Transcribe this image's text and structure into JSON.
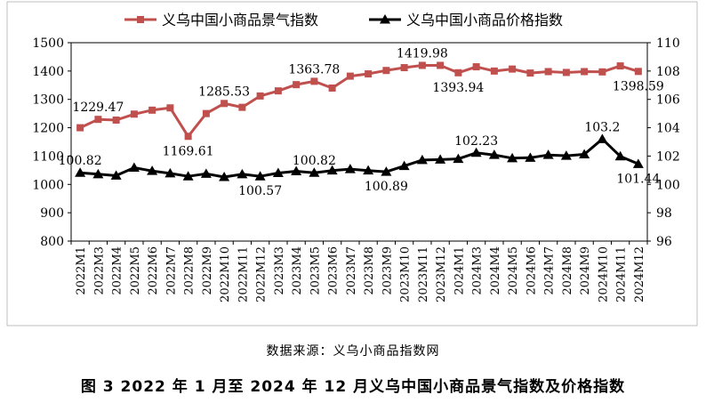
{
  "chart_data": {
    "type": "line",
    "categories": [
      "2022M1",
      "2022M3",
      "2022M4",
      "2022M5",
      "2022M6",
      "2022M7",
      "2022M8",
      "2022M9",
      "2022M10",
      "2022M11",
      "2022M12",
      "2023M3",
      "2023M4",
      "2023M5",
      "2023M6",
      "2023M7",
      "2023M8",
      "2023M9",
      "2023M10",
      "2023M11",
      "2023M12",
      "2024M1",
      "2024M3",
      "2024M4",
      "2024M5",
      "2024M6",
      "2024M7",
      "2024M8",
      "2024M9",
      "2024M10",
      "2024M11",
      "2024M12"
    ],
    "series": [
      {
        "name": "义乌中国小商品景气指数",
        "axis": "left",
        "color": "#c0504d",
        "marker": "square",
        "values": [
          1200,
          1229.47,
          1227,
          1248,
          1262,
          1270,
          1169.61,
          1250,
          1285.53,
          1272,
          1312,
          1330,
          1352,
          1363.78,
          1340,
          1382,
          1390,
          1402,
          1412,
          1419.98,
          1420,
          1393.94,
          1415,
          1400,
          1407,
          1393,
          1398,
          1395,
          1398,
          1397,
          1418,
          1398.59
        ]
      },
      {
        "name": "义乌中国小商品价格指数",
        "axis": "right",
        "color": "#000000",
        "marker": "triangle",
        "values": [
          100.82,
          100.72,
          100.62,
          101.18,
          100.95,
          100.78,
          100.57,
          100.75,
          100.52,
          100.72,
          100.57,
          100.8,
          100.93,
          100.82,
          100.98,
          101.08,
          100.98,
          100.89,
          101.3,
          101.72,
          101.75,
          101.8,
          102.23,
          102.08,
          101.85,
          101.88,
          102.08,
          102.02,
          102.12,
          103.2,
          101.98,
          101.44
        ]
      }
    ],
    "annotations": [
      {
        "series": 0,
        "index": 1,
        "text": "1229.47",
        "pos": "above"
      },
      {
        "series": 0,
        "index": 6,
        "text": "1169.61",
        "pos": "below"
      },
      {
        "series": 0,
        "index": 8,
        "text": "1285.53",
        "pos": "above"
      },
      {
        "series": 0,
        "index": 13,
        "text": "1363.78",
        "pos": "above"
      },
      {
        "series": 0,
        "index": 19,
        "text": "1419.98",
        "pos": "above"
      },
      {
        "series": 0,
        "index": 21,
        "text": "1393.94",
        "pos": "below"
      },
      {
        "series": 0,
        "index": 31,
        "text": "1398.59",
        "pos": "below"
      },
      {
        "series": 1,
        "index": 0,
        "text": "100.82",
        "pos": "above"
      },
      {
        "series": 1,
        "index": 10,
        "text": "100.57",
        "pos": "below"
      },
      {
        "series": 1,
        "index": 13,
        "text": "100.82",
        "pos": "above"
      },
      {
        "series": 1,
        "index": 17,
        "text": "100.89",
        "pos": "below"
      },
      {
        "series": 1,
        "index": 22,
        "text": "102.23",
        "pos": "above"
      },
      {
        "series": 1,
        "index": 29,
        "text": "103.2",
        "pos": "above"
      },
      {
        "series": 1,
        "index": 31,
        "text": "101.44",
        "pos": "below"
      }
    ],
    "y_left": {
      "min": 800,
      "max": 1500,
      "ticks": [
        800,
        900,
        1000,
        1100,
        1200,
        1300,
        1400,
        1500
      ]
    },
    "y_right": {
      "min": 96,
      "max": 110,
      "ticks": [
        96,
        98,
        100,
        102,
        104,
        106,
        108,
        110
      ]
    },
    "legend_position": "top-center",
    "grid": false
  },
  "source_note": "数据来源：义乌小商品指数网",
  "caption": "图 3   2022 年 1 月至 2024 年 12 月义乌中国小商品景气指数及价格指数"
}
